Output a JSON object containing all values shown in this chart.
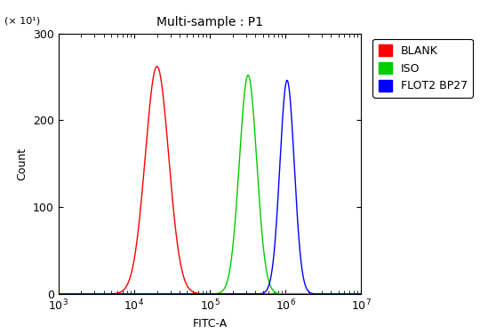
{
  "title": "Multi-sample : P1",
  "xlabel": "FITC-A",
  "ylabel": "Count",
  "y_scale_label": "(× 10¹)",
  "xlim_log": [
    1000.0,
    10000000.0
  ],
  "ylim": [
    0,
    300
  ],
  "yticks": [
    0,
    100,
    200,
    300
  ],
  "series": [
    {
      "label": "BLANK",
      "color": "#ff0000",
      "peak_x": 20000.0,
      "sigma_log": 0.155,
      "peak_y": 262
    },
    {
      "label": "ISO",
      "color": "#00cc00",
      "peak_x": 320000.0,
      "sigma_log": 0.115,
      "peak_y": 252
    },
    {
      "label": "FLOT2 BP27",
      "color": "#0000ff",
      "peak_x": 1050000.0,
      "sigma_log": 0.095,
      "peak_y": 246
    }
  ],
  "legend_loc": "upper right",
  "background_color": "#ffffff",
  "plot_bg_color": "#ffffff",
  "title_fontsize": 10,
  "axis_fontsize": 9,
  "tick_fontsize": 9,
  "legend_fontsize": 9
}
